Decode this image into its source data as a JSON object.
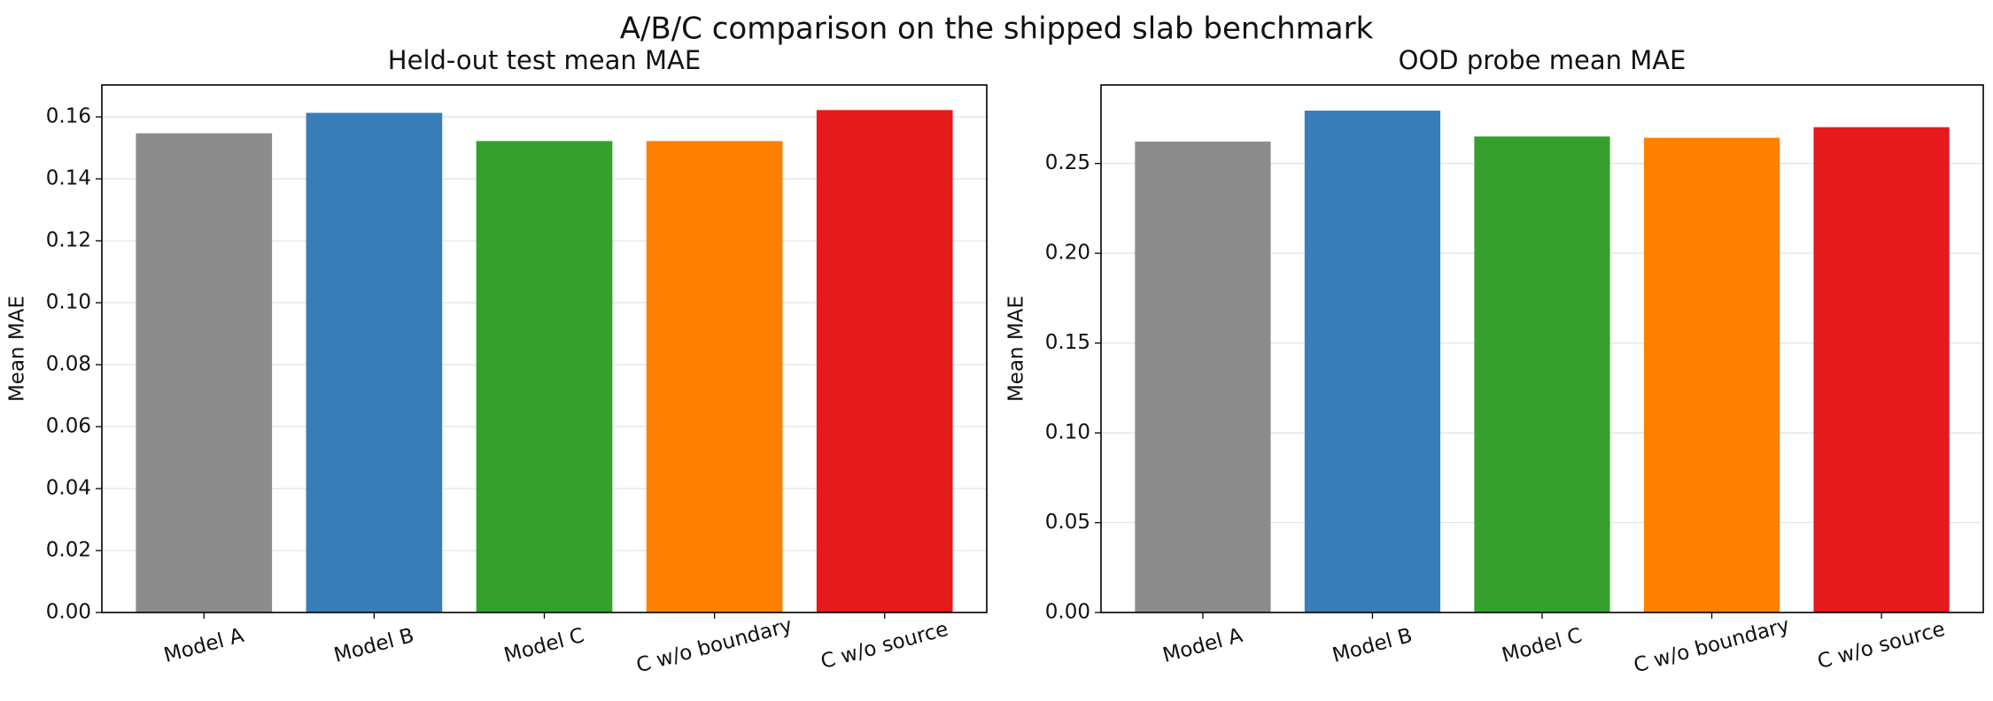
{
  "title": "A/B/C comparison on the shipped slab benchmark",
  "chart_data": [
    {
      "type": "bar",
      "title": "Held-out test mean MAE",
      "y_label": "Mean MAE",
      "categories": [
        "Model A",
        "Model B",
        "Model C",
        "C w/o boundary",
        "C w/o source"
      ],
      "values": [
        0.1547,
        0.1613,
        0.1522,
        0.1522,
        0.1622
      ],
      "colors": [
        "#8c8c8c",
        "#377eb8",
        "#35a02e",
        "#ff7f00",
        "#e41a1c"
      ],
      "ylim": [
        0,
        0.1703
      ],
      "yticks": [
        {
          "value": 0,
          "label": "0.00"
        },
        {
          "value": 0.02,
          "label": "0.02"
        },
        {
          "value": 0.04,
          "label": "0.04"
        },
        {
          "value": 0.06,
          "label": "0.06"
        },
        {
          "value": 0.08,
          "label": "0.08"
        },
        {
          "value": 0.1,
          "label": "0.10"
        },
        {
          "value": 0.12,
          "label": "0.12"
        },
        {
          "value": 0.14,
          "label": "0.14"
        },
        {
          "value": 0.16,
          "label": "0.16"
        }
      ],
      "grid": true
    },
    {
      "type": "bar",
      "title": "OOD probe mean MAE",
      "y_label": "Mean MAE",
      "categories": [
        "Model A",
        "Model B",
        "Model C",
        "C w/o boundary",
        "C w/o source"
      ],
      "values": [
        0.2622,
        0.2794,
        0.265,
        0.2643,
        0.2702
      ],
      "colors": [
        "#8c8c8c",
        "#377eb8",
        "#35a02e",
        "#ff7f00",
        "#e41a1c"
      ],
      "ylim": [
        0,
        0.2937
      ],
      "yticks": [
        {
          "value": 0,
          "label": "0.00"
        },
        {
          "value": 0.05,
          "label": "0.05"
        },
        {
          "value": 0.1,
          "label": "0.10"
        },
        {
          "value": 0.15,
          "label": "0.15"
        },
        {
          "value": 0.2,
          "label": "0.20"
        },
        {
          "value": 0.25,
          "label": "0.25"
        }
      ],
      "grid": true
    }
  ]
}
